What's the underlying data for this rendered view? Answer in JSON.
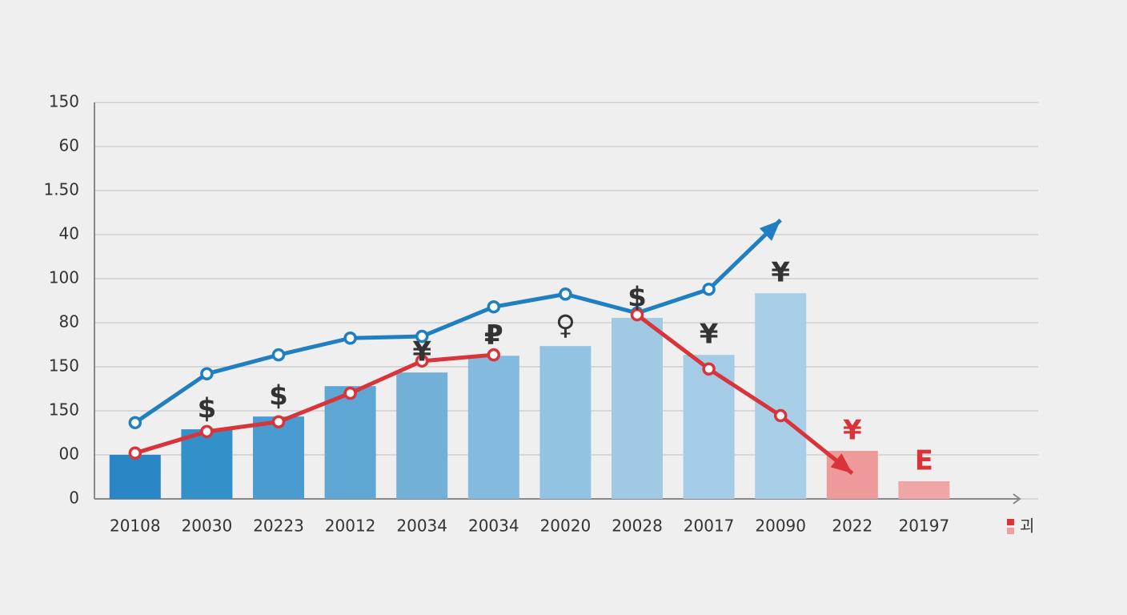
{
  "chart_data": {
    "type": "combo",
    "categories": [
      "20108",
      "20030",
      "20223",
      "20012",
      "20034",
      "20034",
      "20020",
      "20028",
      "20017",
      "20090",
      "2022",
      "20197"
    ],
    "ylim": [
      0,
      9
    ],
    "yticks": [
      {
        "value": 0,
        "label": "0"
      },
      {
        "value": 1,
        "label": "00"
      },
      {
        "value": 2,
        "label": "150"
      },
      {
        "value": 3,
        "label": "150"
      },
      {
        "value": 4,
        "label": "80"
      },
      {
        "value": 5,
        "label": "100"
      },
      {
        "value": 6,
        "label": "40"
      },
      {
        "value": 7,
        "label": "1.50"
      },
      {
        "value": 8,
        "label": "60"
      },
      {
        "value": 9,
        "label": "150"
      }
    ],
    "grid": true,
    "series": [
      {
        "type": "bar",
        "colors": [
          "#2b86c5",
          "#3490c9",
          "#4a9bcf",
          "#5ea6d3",
          "#72b0d8",
          "#84bade",
          "#93c3e2",
          "#a0c9e4",
          "#a5cce6",
          "#a8cfe7",
          "#ef9a9a",
          "#f0a6a6"
        ],
        "values": [
          1.0,
          1.58,
          1.87,
          2.56,
          2.87,
          3.25,
          3.47,
          4.11,
          3.27,
          4.67,
          1.09,
          0.4
        ]
      },
      {
        "type": "line",
        "color": "#1f7fc0",
        "values": [
          1.73,
          2.84,
          3.27,
          3.65,
          3.69,
          4.36,
          4.65,
          4.22,
          4.76,
          6.33,
          null,
          null
        ]
      },
      {
        "type": "line",
        "color": "#d8343a",
        "values": [
          1.04,
          1.53,
          1.75,
          2.4,
          3.13,
          3.27,
          null,
          4.18,
          2.95,
          1.89,
          0.58,
          null
        ]
      }
    ],
    "bar_symbols": [
      null,
      "$",
      "$",
      null,
      "¥",
      "₽",
      "♀",
      "$",
      "¥",
      "¥",
      "¥",
      "E"
    ],
    "bar_symbol_colors": [
      "#333333",
      "#333333",
      "#333333",
      "#333333",
      "#333333",
      "#333333",
      "#333333",
      "#333333",
      "#333333",
      "#333333",
      "#d8343a",
      "#d8343a"
    ],
    "legend": {
      "label": "괴",
      "colors": [
        "#d8343a",
        "#f0a0a0"
      ]
    }
  }
}
